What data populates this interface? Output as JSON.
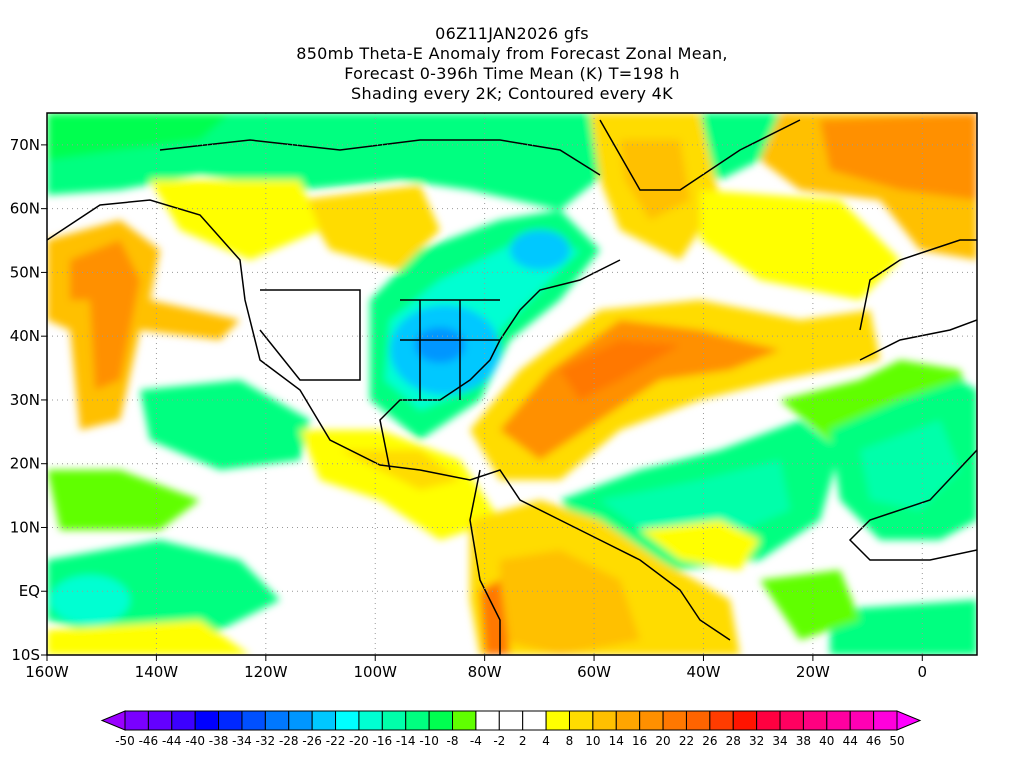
{
  "title": {
    "line1": "06Z11JAN2026 gfs",
    "line2": "850mb Theta-E Anomaly from Forecast Zonal Mean,",
    "line3": "Forecast 0-396h Time Mean (K) T=198 h",
    "line4": "Shading every 2K; Contoured every 4K"
  },
  "axes": {
    "lon_labels": [
      "160W",
      "140W",
      "120W",
      "100W",
      "80W",
      "60W",
      "40W",
      "20W",
      "0"
    ],
    "lon_values": [
      -160,
      -140,
      -120,
      -100,
      -80,
      -60,
      -40,
      -20,
      0
    ],
    "lat_labels": [
      "70N",
      "60N",
      "50N",
      "40N",
      "30N",
      "20N",
      "10N",
      "EQ",
      "10S"
    ],
    "lat_values": [
      70,
      60,
      50,
      40,
      30,
      20,
      10,
      0,
      -10
    ],
    "lon_range": [
      -160,
      10
    ],
    "lat_range": [
      -10,
      75
    ]
  },
  "colorbar": {
    "labels": [
      "-50",
      "-46",
      "-44",
      "-40",
      "-38",
      "-34",
      "-32",
      "-28",
      "-26",
      "-22",
      "-20",
      "-16",
      "-14",
      "-10",
      "-8",
      "-4",
      "-2",
      "2",
      "4",
      "8",
      "10",
      "14",
      "16",
      "20",
      "22",
      "26",
      "28",
      "32",
      "34",
      "38",
      "40",
      "44",
      "46",
      "50"
    ],
    "low_arrow_color": "#9a00ff",
    "high_arrow_color": "#ff00ff",
    "colors": [
      "#7a00ff",
      "#6400ff",
      "#3c00ff",
      "#0000ff",
      "#0028ff",
      "#0050ff",
      "#0078ff",
      "#0096ff",
      "#00c8ff",
      "#00ffff",
      "#00ffd2",
      "#00ffaa",
      "#00ff80",
      "#00ff50",
      "#60ff00",
      "#ffffff",
      "#ffffff",
      "#ffffff",
      "#ffff00",
      "#ffdc00",
      "#ffc000",
      "#ffa500",
      "#ff9000",
      "#ff7800",
      "#ff6400",
      "#ff3c00",
      "#ff1400",
      "#ff0040",
      "#ff0060",
      "#ff0080",
      "#ff00a0",
      "#ff00b4",
      "#ff00dc"
    ]
  }
}
